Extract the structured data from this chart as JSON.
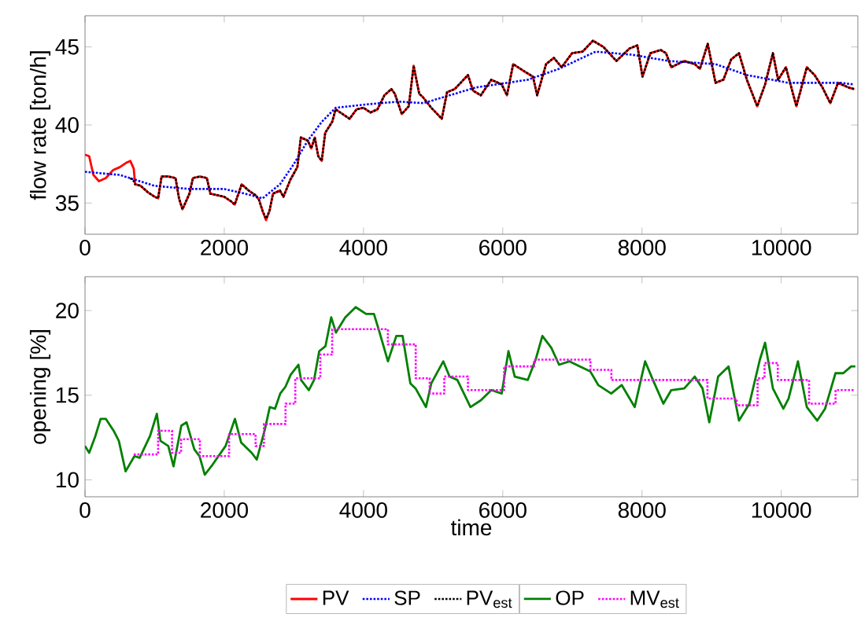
{
  "chart_data": [
    {
      "type": "line",
      "ylabel": "flow rate [ton/h]",
      "xlim": [
        0,
        11100
      ],
      "ylim": [
        33,
        47
      ],
      "xticks": [
        0,
        2000,
        4000,
        6000,
        8000,
        10000
      ],
      "yticks": [
        35,
        40,
        45
      ],
      "legend": "bottom",
      "series": [
        {
          "name": "PV",
          "color": "#ff0000",
          "line_style": "solid",
          "x": [
            0,
            60,
            120,
            200,
            300,
            400,
            500,
            600,
            650,
            700,
            720,
            800,
            900,
            1000,
            1050,
            1100,
            1200,
            1300,
            1350,
            1400,
            1500,
            1550,
            1650,
            1750,
            1800,
            1900,
            2000,
            2100,
            2150,
            2250,
            2350,
            2450,
            2500,
            2550,
            2600,
            2650,
            2700,
            2800,
            2850,
            2950,
            3050,
            3100,
            3200,
            3250,
            3300,
            3350,
            3400,
            3450,
            3550,
            3600,
            3700,
            3800,
            3900,
            4000,
            4100,
            4200,
            4300,
            4400,
            4450,
            4550,
            4650,
            4720,
            4800,
            4850,
            4974,
            5124,
            5200,
            5311,
            5500,
            5573,
            5685,
            5835,
            5985,
            6060,
            6150,
            6322,
            6434,
            6494,
            6622,
            6734,
            6846,
            6996,
            7146,
            7296,
            7446,
            7633,
            7820,
            7933,
            8007,
            8120,
            8270,
            8345,
            8420,
            8607,
            8757,
            8832,
            8944,
            9056,
            9169,
            9281,
            9393,
            9506,
            9655,
            9768,
            9880,
            9955,
            10067,
            10217,
            10367,
            10479,
            10592,
            10704,
            10816,
            10966,
            11050
          ],
          "values": [
            38.1,
            38.0,
            36.8,
            36.4,
            36.6,
            37.1,
            37.3,
            37.6,
            37.7,
            37.2,
            36.2,
            36.1,
            35.7,
            35.4,
            35.3,
            36.7,
            36.7,
            36.6,
            35.3,
            34.6,
            35.6,
            36.6,
            36.7,
            36.6,
            35.6,
            35.5,
            35.4,
            35.1,
            34.9,
            36.2,
            35.8,
            35.5,
            35.2,
            34.5,
            33.9,
            34.5,
            35.6,
            35.8,
            35.4,
            36.5,
            37.3,
            39.2,
            39.0,
            38.5,
            39.2,
            38.0,
            37.7,
            39.5,
            40.2,
            41.0,
            40.7,
            40.4,
            41.0,
            41.1,
            40.8,
            41.0,
            41.9,
            42.3,
            42.0,
            40.7,
            41.2,
            43.8,
            42.0,
            41.8,
            41.1,
            40.4,
            42.1,
            42.3,
            43.2,
            42.2,
            41.9,
            42.9,
            42.6,
            41.9,
            43.9,
            43.4,
            43.1,
            41.9,
            43.9,
            44.3,
            43.7,
            44.6,
            44.7,
            45.4,
            45.0,
            44.1,
            44.9,
            45.1,
            43.1,
            44.6,
            44.8,
            44.6,
            43.7,
            44.1,
            43.9,
            43.6,
            45.2,
            42.7,
            42.9,
            44.2,
            44.6,
            42.9,
            41.2,
            42.6,
            44.6,
            42.9,
            43.7,
            41.2,
            43.7,
            43.2,
            42.4,
            41.4,
            42.7,
            42.4,
            42.3
          ]
        },
        {
          "name": "SP",
          "color": "#0000ff",
          "line_style": "dotted",
          "x": [
            0,
            500,
            1000,
            1500,
            2000,
            2300,
            2550,
            2800,
            3000,
            3200,
            3400,
            3600,
            4000,
            4500,
            4861,
            5610,
            6360,
            6809,
            7333,
            7858,
            8382,
            9056,
            9506,
            10105,
            10854,
            11040
          ],
          "values": [
            37.0,
            36.8,
            36.1,
            35.9,
            35.9,
            35.6,
            35.3,
            36.2,
            37.5,
            39.0,
            40.2,
            41.1,
            41.3,
            41.5,
            41.4,
            42.4,
            42.9,
            43.6,
            44.7,
            44.5,
            44.1,
            43.9,
            43.2,
            42.7,
            42.7,
            42.6
          ]
        },
        {
          "name": "PV$_{est}$",
          "color": "#000000",
          "line_style": "dotted",
          "x": [
            650,
            700,
            720,
            800,
            900,
            1000,
            1050,
            1100,
            1200,
            1300,
            1350,
            1400,
            1500,
            1550,
            1650,
            1750,
            1800,
            1900,
            2000,
            2100,
            2150,
            2250,
            2350,
            2450,
            2500,
            2550,
            2600,
            2650,
            2700,
            2800,
            2850,
            2950,
            3050,
            3100,
            3200,
            3250,
            3300,
            3350,
            3400,
            3450,
            3550,
            3600,
            3700,
            3800,
            3900,
            4000,
            4100,
            4200,
            4300,
            4400,
            4450,
            4550,
            4650,
            4720,
            4800,
            4850,
            4974,
            5124,
            5200,
            5311,
            5500,
            5573,
            5685,
            5835,
            5985,
            6060,
            6150,
            6322,
            6434,
            6494,
            6622,
            6734,
            6846,
            6996,
            7146,
            7296,
            7446,
            7633,
            7820,
            7933,
            8007,
            8120,
            8270,
            8345,
            8420,
            8607,
            8757,
            8832,
            8944,
            9056,
            9169,
            9281,
            9393,
            9506,
            9655,
            9768,
            9880,
            9955,
            10067,
            10217,
            10367,
            10479,
            10592,
            10704,
            10816,
            10966,
            11050
          ],
          "values": [
            36.6,
            36.4,
            36.2,
            36.1,
            35.7,
            35.4,
            35.3,
            36.7,
            36.7,
            36.6,
            35.3,
            34.6,
            35.6,
            36.6,
            36.7,
            36.6,
            35.6,
            35.5,
            35.4,
            35.1,
            34.9,
            36.2,
            35.8,
            35.5,
            35.2,
            34.5,
            34.0,
            34.5,
            35.6,
            35.8,
            35.4,
            36.5,
            37.3,
            39.2,
            39.0,
            38.5,
            39.2,
            38.0,
            37.7,
            39.5,
            40.2,
            41.0,
            40.7,
            40.4,
            41.0,
            41.1,
            40.8,
            41.0,
            41.9,
            42.3,
            42.0,
            40.7,
            41.2,
            43.8,
            42.0,
            41.8,
            41.1,
            40.4,
            42.1,
            42.3,
            43.2,
            42.2,
            41.9,
            42.9,
            42.6,
            41.9,
            43.9,
            43.4,
            43.1,
            41.9,
            43.9,
            44.3,
            43.7,
            44.6,
            44.7,
            45.4,
            45.0,
            44.1,
            44.9,
            45.1,
            43.1,
            44.6,
            44.8,
            44.6,
            43.7,
            44.1,
            43.9,
            43.6,
            45.2,
            42.7,
            42.9,
            44.2,
            44.6,
            42.9,
            41.2,
            42.6,
            44.6,
            42.9,
            43.7,
            41.2,
            43.7,
            43.2,
            42.4,
            41.4,
            42.7,
            42.4,
            42.3
          ]
        }
      ]
    },
    {
      "type": "line",
      "xlabel": "time",
      "ylabel": "opening [%]",
      "xlim": [
        0,
        11100
      ],
      "ylim": [
        9,
        22
      ],
      "xticks": [
        0,
        2000,
        4000,
        6000,
        8000,
        10000
      ],
      "yticks": [
        10,
        15,
        20
      ],
      "legend": "bottom",
      "series": [
        {
          "name": "OP",
          "color": "#008000",
          "line_style": "solid",
          "x": [
            0,
            60,
            150,
            224,
            300,
            411,
            486,
            583,
            710,
            785,
            935,
            1032,
            1084,
            1196,
            1271,
            1383,
            1458,
            1570,
            1645,
            1720,
            1832,
            2019,
            2153,
            2243,
            2393,
            2467,
            2579,
            2654,
            2729,
            2804,
            2879,
            2953,
            3065,
            3103,
            3215,
            3290,
            3364,
            3454,
            3536,
            3604,
            3738,
            3888,
            4037,
            4150,
            4224,
            4351,
            4471,
            4561,
            4673,
            4748,
            4897,
            4974,
            5146,
            5236,
            5348,
            5536,
            5685,
            5835,
            5985,
            6082,
            6172,
            6360,
            6472,
            6569,
            6697,
            6809,
            6959,
            7109,
            7258,
            7371,
            7558,
            7708,
            7895,
            8045,
            8157,
            8307,
            8420,
            8607,
            8757,
            8869,
            8966,
            9094,
            9243,
            9393,
            9543,
            9693,
            9768,
            9880,
            10030,
            10105,
            10240,
            10367,
            10517,
            10629,
            10779,
            10891,
            11004,
            11064
          ],
          "values": [
            12.0,
            11.6,
            12.6,
            13.6,
            13.6,
            12.9,
            12.3,
            10.5,
            11.4,
            11.3,
            12.6,
            13.9,
            12.3,
            12.0,
            10.8,
            13.2,
            13.4,
            11.8,
            11.4,
            10.3,
            10.9,
            12.0,
            13.6,
            12.2,
            11.6,
            11.2,
            12.9,
            14.3,
            14.2,
            15.1,
            15.5,
            16.2,
            16.8,
            15.9,
            15.3,
            15.9,
            17.6,
            17.9,
            19.6,
            18.7,
            19.6,
            20.2,
            19.8,
            19.8,
            18.8,
            17.0,
            18.5,
            18.5,
            15.7,
            15.4,
            14.3,
            15.7,
            17.0,
            16.1,
            15.9,
            14.3,
            14.7,
            15.3,
            15.1,
            17.6,
            16.1,
            15.9,
            17.1,
            18.5,
            17.8,
            16.8,
            17.0,
            16.7,
            16.4,
            15.6,
            15.1,
            15.6,
            14.3,
            17.0,
            15.9,
            14.5,
            15.3,
            15.4,
            16.1,
            15.4,
            13.4,
            16.1,
            16.7,
            13.5,
            14.5,
            17.1,
            18.1,
            15.4,
            14.2,
            14.8,
            17.0,
            14.3,
            13.5,
            14.2,
            16.3,
            16.3,
            16.7,
            16.7
          ]
        },
        {
          "name": "MV$_{est}$",
          "type": "step",
          "color": "#ff00ff",
          "line_style": "dotted",
          "x": [
            700,
            1050,
            1250,
            1380,
            1650,
            2070,
            2450,
            2570,
            2880,
            3020,
            3380,
            3550,
            4350,
            4750,
            4950,
            5160,
            5500,
            6020,
            6450,
            7260,
            7560,
            8940,
            9360,
            9660,
            9760,
            9950,
            10400,
            10780,
            11050
          ],
          "values": [
            11.5,
            12.9,
            11.6,
            12.4,
            11.4,
            12.7,
            12.0,
            13.3,
            14.5,
            16.0,
            17.4,
            18.9,
            18.0,
            16.0,
            15.1,
            16.1,
            15.3,
            16.7,
            17.1,
            16.5,
            15.9,
            14.8,
            14.4,
            16.0,
            16.9,
            15.9,
            14.5,
            15.3,
            15.3
          ]
        }
      ]
    }
  ]
}
